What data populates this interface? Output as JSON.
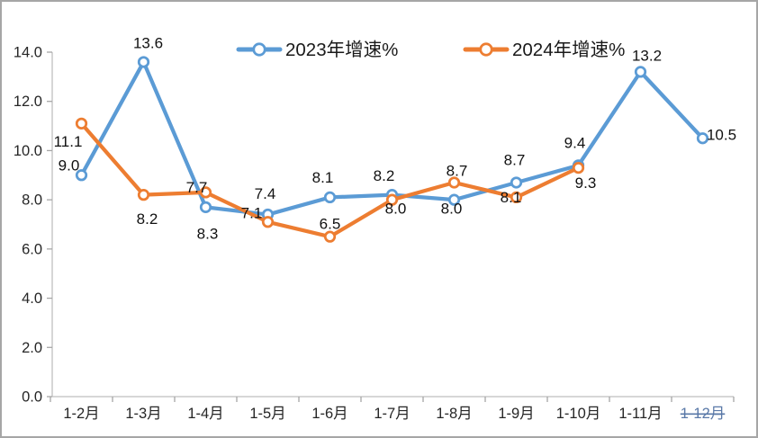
{
  "window": {
    "background": "#ffffff",
    "border_color": "#a6a6a6"
  },
  "chart_data": {
    "type": "line",
    "title": "",
    "xlabel": "",
    "ylabel": "",
    "categories": [
      "1-2月",
      "1-3月",
      "1-4月",
      "1-5月",
      "1-6月",
      "1-7月",
      "1-8月",
      "1-9月",
      "1-10月",
      "1-11月",
      "1-12月"
    ],
    "series": [
      {
        "name": "2023年增速%",
        "color": "#5B9BD5",
        "values": [
          9.0,
          13.6,
          7.7,
          7.4,
          8.1,
          8.2,
          8.0,
          8.7,
          9.4,
          13.2,
          10.5
        ],
        "data_labels": [
          "9.0",
          "13.6",
          "7.7",
          "7.4",
          "8.1",
          "8.2",
          "8.0",
          "8.7",
          "9.4",
          "13.2",
          "10.5"
        ],
        "label_offsets": [
          [
            -14,
            -11
          ],
          [
            5,
            -21
          ],
          [
            -10,
            -22
          ],
          [
            -3,
            -23
          ],
          [
            -8,
            -22
          ],
          [
            -9,
            -21
          ],
          [
            -3,
            10
          ],
          [
            -2,
            -25
          ],
          [
            -4,
            -25
          ],
          [
            7,
            -18
          ],
          [
            21,
            -4
          ]
        ]
      },
      {
        "name": "2024年增速%",
        "color": "#ED7D31",
        "values": [
          11.1,
          8.2,
          8.3,
          7.1,
          6.5,
          8.0,
          8.7,
          8.1,
          9.3
        ],
        "data_labels": [
          "11.1",
          "8.2",
          "8.3",
          "7.1",
          "6.5",
          "8.0",
          "8.7",
          "8.1",
          "9.3"
        ],
        "label_offsets": [
          [
            -15,
            20
          ],
          [
            4,
            27
          ],
          [
            2,
            46
          ],
          [
            -18,
            -10
          ],
          [
            0,
            -14
          ],
          [
            4,
            10
          ],
          [
            3,
            -13
          ],
          [
            -6,
            0
          ],
          [
            8,
            17
          ]
        ]
      }
    ],
    "ylim": [
      0,
      14
    ],
    "ytick_step": 2,
    "ytick_labels": [
      "0.0",
      "2.0",
      "4.0",
      "6.0",
      "8.0",
      "10.0",
      "12.0",
      "14.0"
    ],
    "grid": false,
    "legend_position": "top",
    "marker": "open-circle",
    "axis_line_color": "#bfbfbf",
    "tick_color": "#a6a6a6",
    "axis_text_color": "#262626",
    "data_label_color": "#111111",
    "legend_text_color": "#1a1a1a",
    "last_x_label_style": {
      "color": "#5a79a8",
      "strikethrough": true
    }
  }
}
